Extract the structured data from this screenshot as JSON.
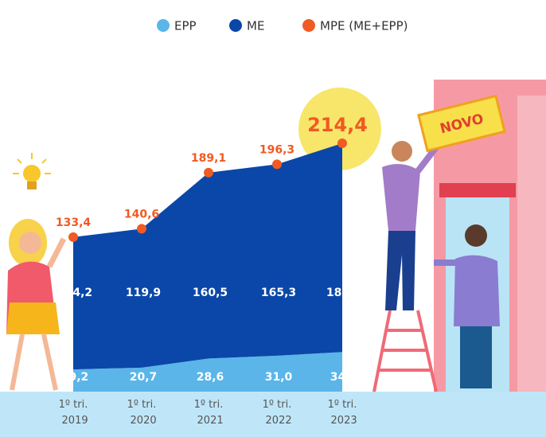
{
  "chart_data": {
    "type": "stacked-area",
    "categories": [
      "1º tri. 2019",
      "1º tri. 2020",
      "1º tri. 2021",
      "1º tri. 2022",
      "1º tri. 2023"
    ],
    "series": [
      {
        "name": "EPP",
        "color": "#5bb5e8",
        "values": [
          19.2,
          20.7,
          28.6,
          31.0,
          34.2
        ],
        "value_labels": [
          "19,2",
          "20,7",
          "28,6",
          "31,0",
          "34,2"
        ]
      },
      {
        "name": "ME",
        "color": "#0a47a8",
        "values": [
          114.2,
          119.9,
          160.5,
          165.3,
          180.2
        ],
        "value_labels": [
          "114,2",
          "119,9",
          "160,5",
          "165,3",
          "180,2"
        ]
      },
      {
        "name": "MPE (ME+EPP)",
        "color": "#f05a23",
        "values": [
          133.4,
          140.6,
          189.1,
          196.3,
          214.4
        ],
        "value_labels": [
          "133,4",
          "140,6",
          "189,1",
          "196,3",
          "214,4"
        ]
      }
    ]
  },
  "sign": "NOVO"
}
